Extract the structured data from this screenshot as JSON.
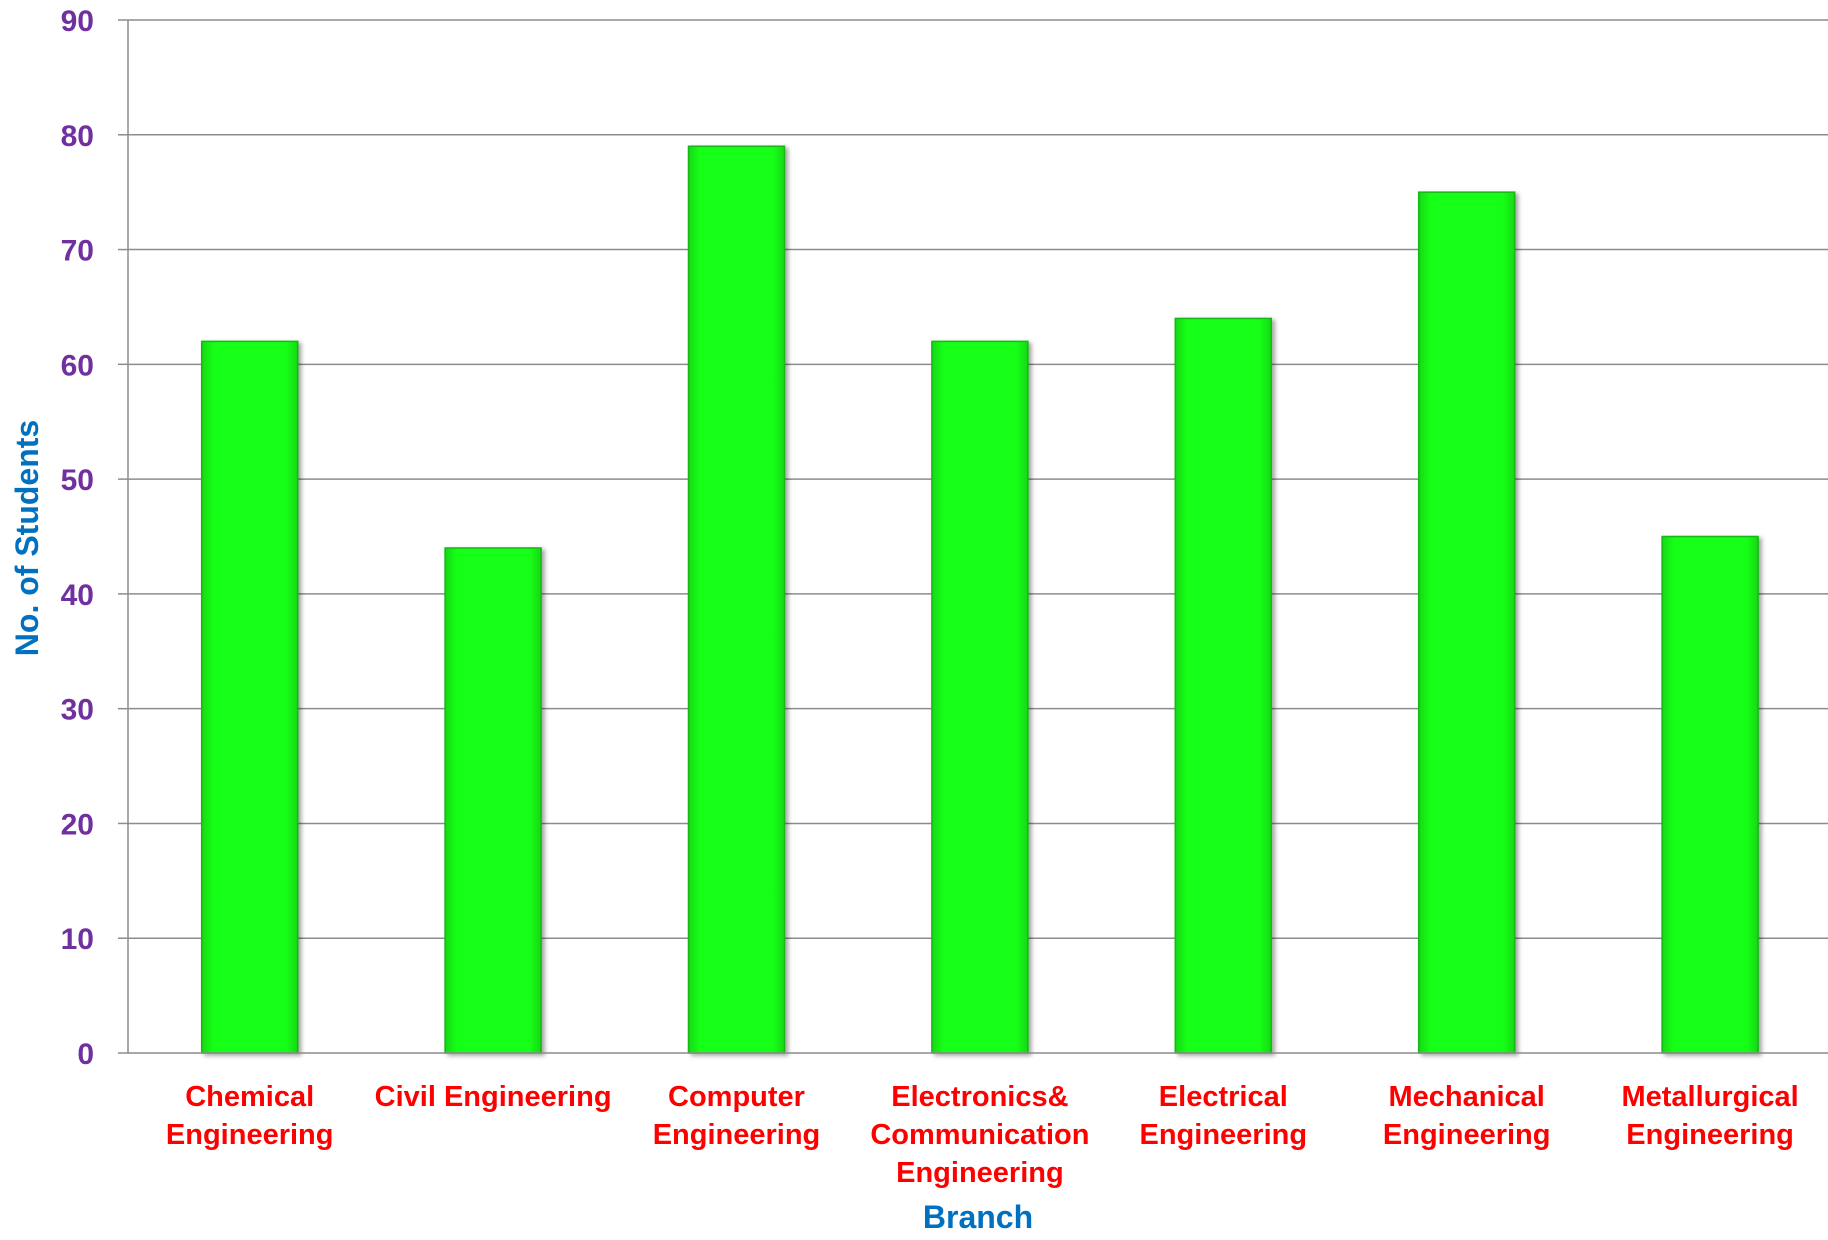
{
  "colors": {
    "bar": "#19ff19",
    "bar_edge": "#12b812",
    "ytick": "#7030a0",
    "xtick": "#ff0000",
    "axis_title": "#0070c0",
    "grid": "#8c8c8c"
  },
  "chart_data": {
    "type": "bar",
    "title": "",
    "xlabel": "Branch",
    "ylabel": "No. of Students",
    "ylim": [
      0,
      90
    ],
    "ytick_step": 10,
    "grid": true,
    "legend": "none",
    "categories": [
      [
        "Chemical",
        "Engineering"
      ],
      [
        "Civil Engineering"
      ],
      [
        "Computer",
        "Engineering"
      ],
      [
        "Electronics&",
        "Communication",
        "Engineering"
      ],
      [
        "Electrical",
        "Engineering"
      ],
      [
        "Mechanical",
        "Engineering"
      ],
      [
        "Metallurgical",
        "Engineering"
      ]
    ],
    "values": [
      62,
      44,
      79,
      62,
      64,
      75,
      45
    ]
  }
}
